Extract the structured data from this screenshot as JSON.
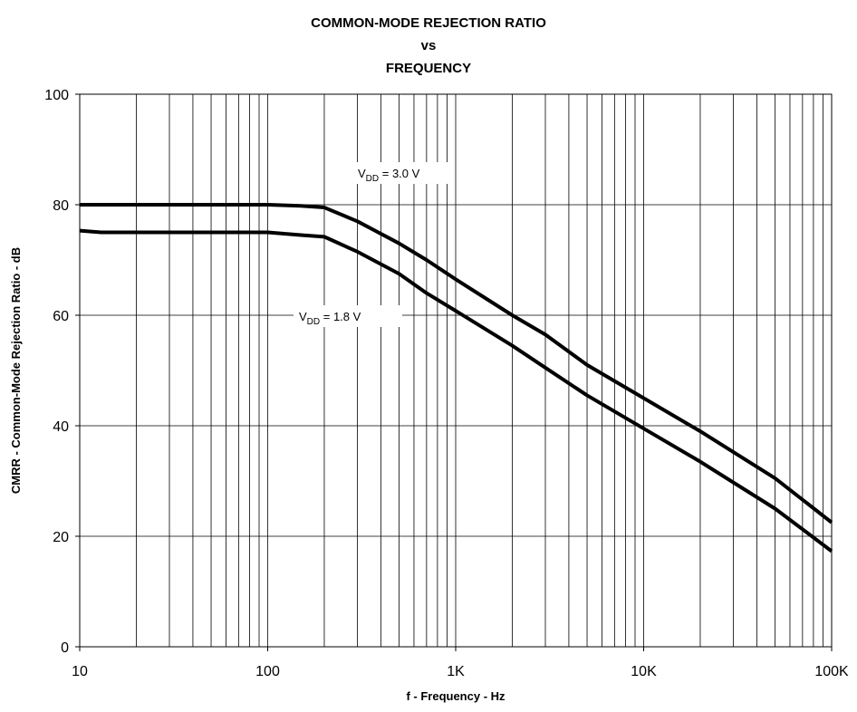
{
  "chart_data": {
    "type": "line",
    "title": [
      "COMMON-MODE REJECTION RATIO",
      "vs",
      "FREQUENCY"
    ],
    "xlabel": "f - Frequency - Hz",
    "ylabel": "CMRR - Common-Mode Rejection Ratio - dB",
    "xscale": "log",
    "xlim": [
      10,
      100000
    ],
    "ylim": [
      0,
      100
    ],
    "xticks": [
      10,
      100,
      {
        "value": 1000,
        "label": "1K"
      },
      {
        "value": 10000,
        "label": "10K"
      },
      {
        "value": 100000,
        "label": "100K"
      }
    ],
    "xminor": [
      20,
      30,
      40,
      50,
      60,
      70,
      80,
      90,
      200,
      300,
      400,
      500,
      600,
      700,
      800,
      900,
      2000,
      3000,
      4000,
      5000,
      6000,
      7000,
      8000,
      9000,
      20000,
      30000,
      40000,
      50000,
      60000,
      70000,
      80000,
      90000
    ],
    "yticks": [
      0,
      20,
      40,
      60,
      80,
      100
    ],
    "grid": true,
    "series": [
      {
        "name": [
          "V",
          "DD",
          " = 3.0 V"
        ],
        "color": "#000000",
        "x": [
          10,
          100,
          150,
          200,
          300,
          500,
          700,
          1000,
          2000,
          3000,
          5000,
          10000,
          20000,
          50000,
          100000
        ],
        "values": [
          80,
          80,
          79.8,
          79.5,
          77,
          73,
          70,
          66.5,
          60,
          56.5,
          51,
          45,
          39,
          30.5,
          22.5
        ]
      },
      {
        "name": [
          "V",
          "DD",
          " = 1.8 V"
        ],
        "color": "#000000",
        "x": [
          10,
          13,
          100,
          150,
          200,
          300,
          500,
          700,
          1000,
          2000,
          3000,
          5000,
          10000,
          20000,
          50000,
          100000
        ],
        "values": [
          75.3,
          75,
          75,
          74.5,
          74.2,
          71.5,
          67.5,
          64,
          60.8,
          54.5,
          50.5,
          45.5,
          39.5,
          33.5,
          25,
          17.3
        ]
      }
    ]
  }
}
